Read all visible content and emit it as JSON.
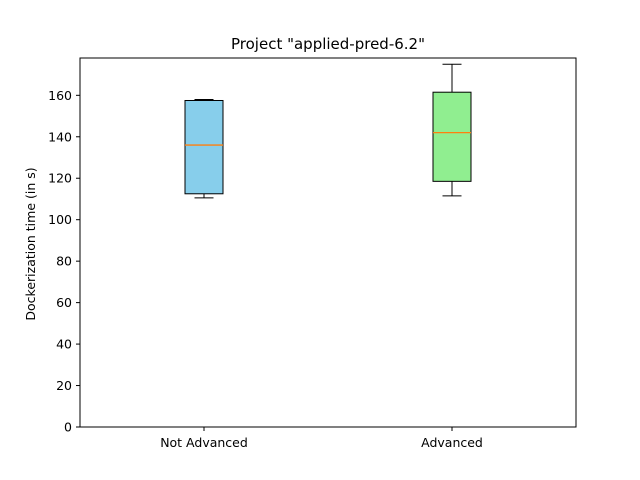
{
  "chart_data": {
    "type": "box",
    "title": "Project \"applied-pred-6.2\"",
    "xlabel": "",
    "ylabel": "Dockerization time (in s)",
    "ylim": [
      0,
      178
    ],
    "yticks": [
      0,
      20,
      40,
      60,
      80,
      100,
      120,
      140,
      160
    ],
    "grid": false,
    "categories": [
      "Not Advanced",
      "Advanced"
    ],
    "boxes": [
      {
        "category": "Not Advanced",
        "whisker_low": 110.5,
        "q1": 112.5,
        "median": 136,
        "q3": 157.5,
        "whisker_high": 158,
        "color": "#87ceeb"
      },
      {
        "category": "Advanced",
        "whisker_low": 111.5,
        "q1": 118.5,
        "median": 142,
        "q3": 161.5,
        "whisker_high": 175,
        "color": "#90ee90"
      }
    ],
    "median_color": "#ff7f0e"
  }
}
